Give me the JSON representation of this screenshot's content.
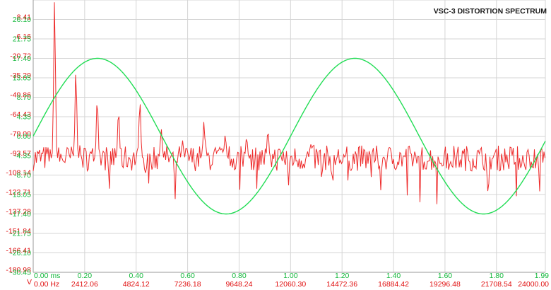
{
  "chart_data": {
    "type": "line",
    "title": "VSC-3 DISTORTION SPECTRUM",
    "colors": {
      "spectrum": "#ee2b2b",
      "waveform": "#22dd55",
      "grid": "#d4d4d4",
      "time_label": "#14b83c",
      "freq_label": "#e01010",
      "title": "#1a1a1a"
    },
    "y_axis_left": {
      "spectrum_db_ticks": [
        "36.40",
        "8.41",
        "-6.16",
        "-20.72",
        "-35.29",
        "-49.86",
        "-64.43",
        "-79.00",
        "-93.57",
        "-108.14",
        "-122.71",
        "-137.28",
        "-151.84",
        "-166.41",
        "-180.98"
      ],
      "waveform_ticks": [
        "26.10",
        "21.75",
        "17.40",
        "13.05",
        "8.70",
        "4.35",
        "0.00",
        "-4.35",
        "-8.70",
        "-13.05",
        "-17.40",
        "-21.75",
        "-26.10",
        "-30.45"
      ],
      "axis_letter": "V"
    },
    "x_axis_time": {
      "ticks": [
        "0.00 ms",
        "0.20",
        "0.40",
        "0.60",
        "0.80",
        "1.00",
        "1.20",
        "1.40",
        "1.60",
        "1.80",
        "1.99"
      ],
      "range": [
        0,
        1.99
      ]
    },
    "x_axis_freq": {
      "ticks": [
        "0.00 Hz",
        "2412.06",
        "4824.12",
        "7236.18",
        "9648.24",
        "12060.30",
        "14472.36",
        "16884.42",
        "19296.48",
        "21708.54",
        "24000.00"
      ],
      "range": [
        0,
        24000
      ]
    },
    "waveform": {
      "name": "",
      "frequency_khz": 1.0,
      "amplitude": 17.4,
      "unit_range": [
        -30.45,
        30.45
      ]
    },
    "spectrum": {
      "name": "",
      "ylim_db": [
        -195.0,
        36.4
      ],
      "noise_floor_db": -98.0,
      "harmonics": [
        {
          "freq_hz": 1000,
          "db": 36.4
        },
        {
          "freq_hz": 2000,
          "db": -23.0
        },
        {
          "freq_hz": 3000,
          "db": -47.0
        },
        {
          "freq_hz": 4000,
          "db": -57.0
        },
        {
          "freq_hz": 5000,
          "db": -49.0
        },
        {
          "freq_hz": 6000,
          "db": -73.0
        },
        {
          "freq_hz": 7000,
          "db": -83.0
        },
        {
          "freq_hz": 8000,
          "db": -67.0
        },
        {
          "freq_hz": 9000,
          "db": -78.0
        },
        {
          "freq_hz": 10000,
          "db": -80.0
        },
        {
          "freq_hz": 11000,
          "db": -74.0
        },
        {
          "freq_hz": 13000,
          "db": -86.0
        }
      ]
    }
  }
}
